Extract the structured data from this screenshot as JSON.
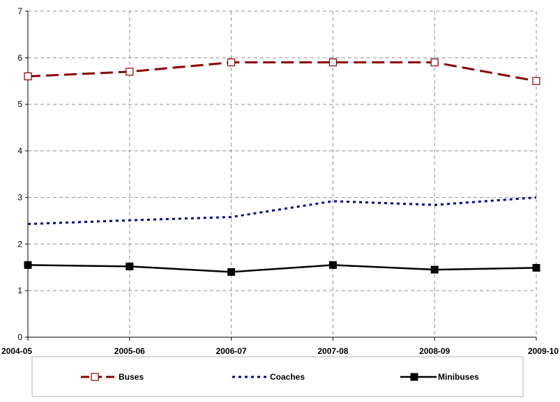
{
  "chart_data": {
    "type": "line",
    "categories": [
      "2004-05",
      "2005-06",
      "2006-07",
      "2007-08",
      "2008-09",
      "2009-10"
    ],
    "ylim": [
      0,
      7
    ],
    "yticks": [
      0,
      1,
      2,
      3,
      4,
      5,
      6,
      7
    ],
    "grid": true,
    "legend_position": "bottom",
    "series": [
      {
        "name": "Buses",
        "values": [
          5.6,
          5.7,
          5.9,
          5.9,
          5.9,
          5.5
        ],
        "color": "#8b0000",
        "line": "long-dash",
        "marker": "open-square"
      },
      {
        "name": "Coaches",
        "values": [
          2.43,
          2.51,
          2.58,
          2.92,
          2.84,
          3.0
        ],
        "color": "#00008b",
        "line": "dotted",
        "marker": "none"
      },
      {
        "name": "Minibuses",
        "values": [
          1.55,
          1.52,
          1.4,
          1.55,
          1.45,
          1.49
        ],
        "color": "#000000",
        "line": "solid",
        "marker": "filled-square"
      }
    ]
  }
}
